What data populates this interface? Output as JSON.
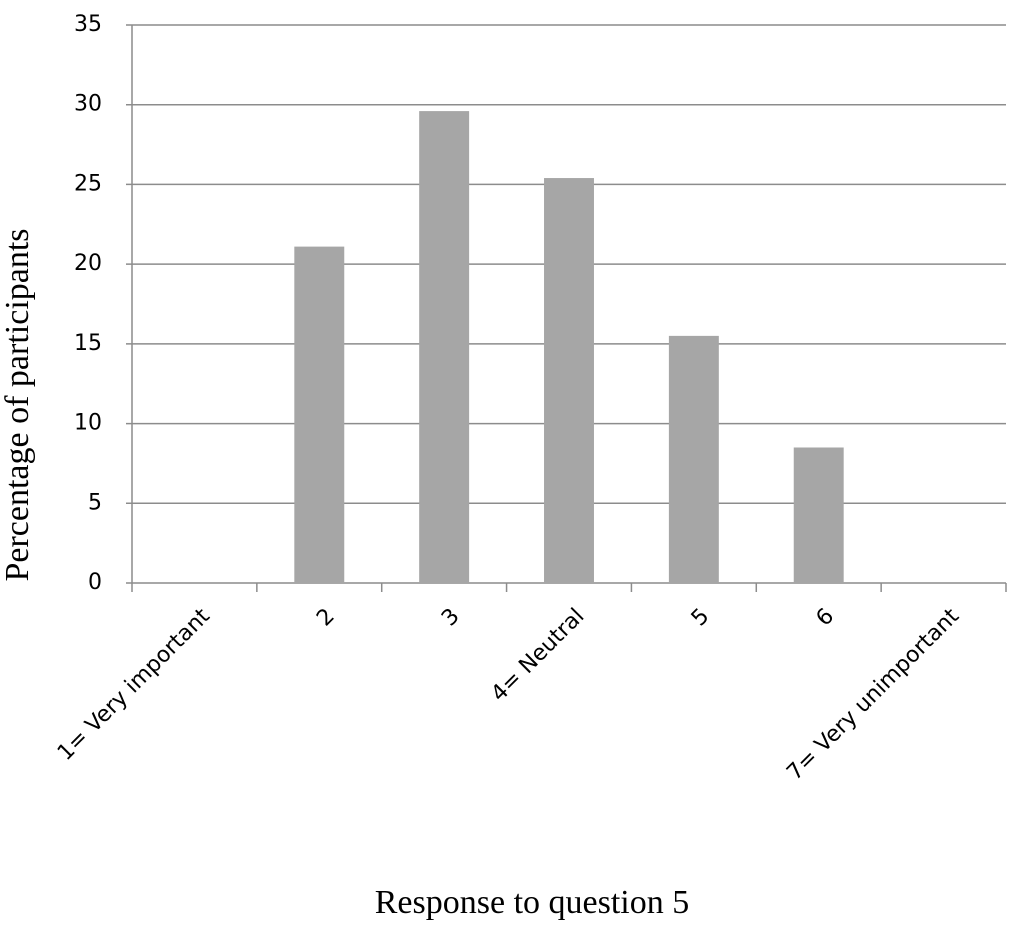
{
  "chart_data": {
    "type": "bar",
    "x_label": "Response to question 5",
    "y_label": "Percentage of participants",
    "categories": [
      "1= Very important",
      "2",
      "3",
      "4= Neutral",
      "5",
      "6",
      "7= Very unimportant"
    ],
    "values": [
      0,
      21.1,
      29.6,
      25.4,
      15.5,
      8.5,
      0
    ],
    "color": "#a6a6a6",
    "ylim": [
      0,
      35
    ],
    "yticks": [
      0,
      5,
      10,
      15,
      20,
      25,
      30,
      35
    ],
    "grid": true
  }
}
